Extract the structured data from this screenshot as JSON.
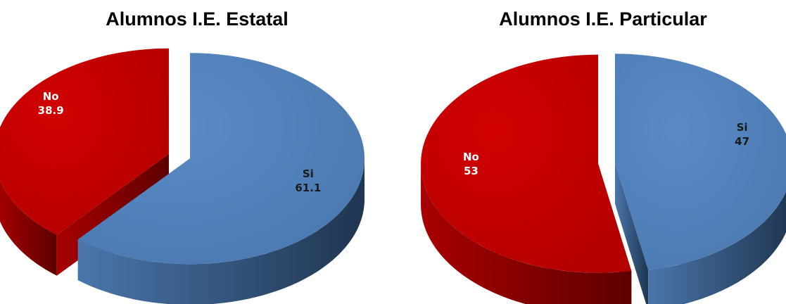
{
  "chart_data": [
    {
      "type": "pie",
      "title": "Alumnos I.E. Estatal",
      "slices": [
        {
          "label": "Si",
          "value": 61.1,
          "value_text": "61.1",
          "color": "#4F81BD"
        },
        {
          "label": "No",
          "value": 38.9,
          "value_text": "38.9",
          "color": "#C00000"
        }
      ]
    },
    {
      "type": "pie",
      "title": "Alumnos I.E. Particular",
      "slices": [
        {
          "label": "Si",
          "value": 47,
          "value_text": "47",
          "color": "#4F81BD"
        },
        {
          "label": "No",
          "value": 53,
          "value_text": "53",
          "color": "#C00000"
        }
      ]
    }
  ]
}
